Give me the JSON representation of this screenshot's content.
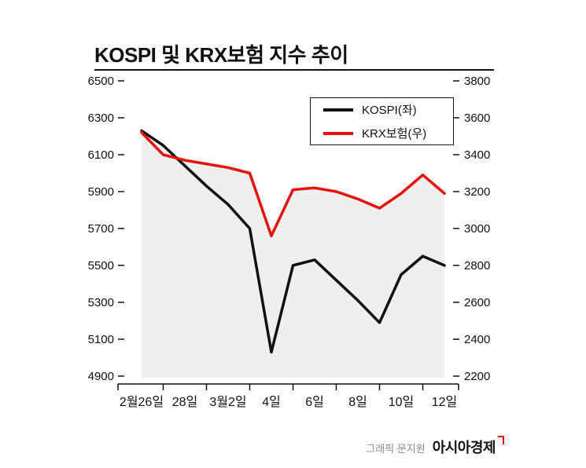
{
  "title": "KOSPI 및 KRX보험 지수 추이",
  "legend": [
    {
      "label": "KOSPI(좌)",
      "color": "#111111"
    },
    {
      "label": "KRX보험(우)",
      "color": "#e8120c"
    }
  ],
  "credit": {
    "prefix": "그래픽 문지원",
    "brand": "아시아경제"
  },
  "chart_data": {
    "type": "line",
    "title": "KOSPI 및 KRX보험 지수 추이",
    "x_tick_labels": [
      "2월26일",
      "28일",
      "3월2일",
      "4일",
      "6일",
      "8일",
      "10일",
      "12일"
    ],
    "points_per_tick": 2,
    "series": [
      {
        "name": "KOSPI(좌)",
        "axis": "left",
        "color": "#111111",
        "values": [
          6230,
          6150,
          6040,
          5930,
          5830,
          5700,
          5030,
          5500,
          5530,
          5420,
          5310,
          5190,
          5450,
          5550,
          5500
        ]
      },
      {
        "name": "KRX보험(우)",
        "axis": "right",
        "color": "#e8120c",
        "values": [
          3520,
          3400,
          3370,
          3350,
          3330,
          3300,
          2960,
          3210,
          3220,
          3200,
          3160,
          3110,
          3190,
          3290,
          3190
        ]
      }
    ],
    "left_axis": {
      "min": 4900,
      "max": 6500,
      "ticks": [
        6500,
        6300,
        6100,
        5900,
        5700,
        5500,
        5300,
        5100,
        4900
      ]
    },
    "right_axis": {
      "min": 2200,
      "max": 3800,
      "ticks": [
        3800,
        3600,
        3400,
        3200,
        3000,
        2800,
        2600,
        2400,
        2200
      ]
    },
    "area_fill": {
      "under_series": "KRX보험(우)",
      "color": "#efefef"
    },
    "grid": false,
    "legend_position": "top-right-inside"
  }
}
